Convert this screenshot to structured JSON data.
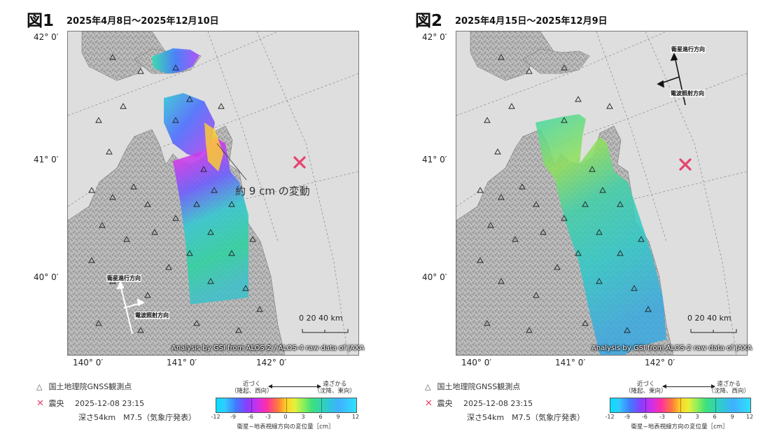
{
  "panels": [
    {
      "title": "図1",
      "date_range": "2025年4月8日～2025年12月10日",
      "lat_labels": [
        "42° 0′",
        "41° 0′",
        "40° 0′"
      ],
      "lon_labels": [
        "140° 0′",
        "141° 0′",
        "142° 0′"
      ],
      "credit": "Analysis by GSI from ALOS-2 / ALOS-4 raw data of JAXA",
      "scale_numbers": "0   20   40 km",
      "annotation": "約 9 cm の変動",
      "satellite_direction_label": "衛星進行方向",
      "radar_direction_label": "電波照射方向",
      "legend": {
        "gnss_label": "国土地理院GNSS観測点",
        "epicenter_label": "震央",
        "epicenter_time": "2025-12-08 23:15",
        "depth_magnitude": "深さ54km　M7.5（気象庁発表）",
        "near_label_line1": "近づく",
        "near_label_line2": "（隆起、西向）",
        "far_label_line1": "遠ざかる",
        "far_label_line2": "（沈降、東向）",
        "ticks": [
          "-12",
          "-9",
          "-6",
          "-3",
          "0",
          "3",
          "6",
          "9",
          "12"
        ],
        "colorbar_title": "衛星−地表視線方向の変位量［cm］"
      }
    },
    {
      "title": "図2",
      "date_range": "2025年4月15日～2025年12月9日",
      "lat_labels": [
        "42° 0′",
        "41° 0′",
        "40° 0′"
      ],
      "lon_labels": [
        "140° 0′",
        "141° 0′",
        "142° 0′"
      ],
      "credit": "Analysis by GSI from ALOS-2 raw data of JAXA",
      "scale_numbers": "0   20   40 km",
      "satellite_direction_label": "衛星進行方向",
      "radar_direction_label": "電波照射方向",
      "legend": {
        "gnss_label": "国土地理院GNSS観測点",
        "epicenter_label": "震央",
        "epicenter_time": "2025-12-08 23:15",
        "depth_magnitude": "深さ54km　M7.5（気象庁発表）",
        "near_label_line1": "近づく",
        "near_label_line2": "（隆起、東向）",
        "far_label_line1": "遠ざかる",
        "far_label_line2": "（沈降、西向）",
        "ticks": [
          "-12",
          "-9",
          "-6",
          "-3",
          "0",
          "3",
          "6",
          "9",
          "12"
        ],
        "colorbar_title": "衛星−地表視線方向の変位量［cm］"
      }
    }
  ],
  "colors": {
    "epicenter": "#e5446d",
    "map_background": "#dedede",
    "land": "#b9b9b9"
  },
  "icons": [
    "triangle-gnss-icon",
    "cross-epicenter-icon",
    "arrow-icon"
  ]
}
